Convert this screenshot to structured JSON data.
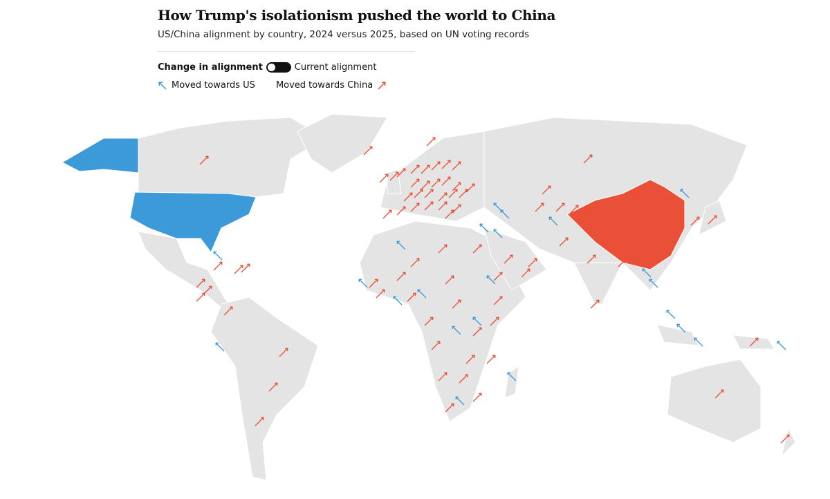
{
  "header": {
    "title": "How Trump's isolationism pushed the world to China",
    "subtitle": "US/China alignment by country, 2024 versus 2025, based on UN voting records"
  },
  "toggle": {
    "left_label": "Change in alignment",
    "right_label": "Current alignment",
    "state": "change"
  },
  "legend": {
    "towards_us": "Moved towards US",
    "towards_china": "Moved towards China"
  },
  "colors": {
    "us": "#3d9ad9",
    "china": "#ea4f37",
    "land": "#e4e4e4",
    "border": "#ffffff"
  },
  "highlighted": {
    "us": "United States",
    "china": "China"
  }
}
